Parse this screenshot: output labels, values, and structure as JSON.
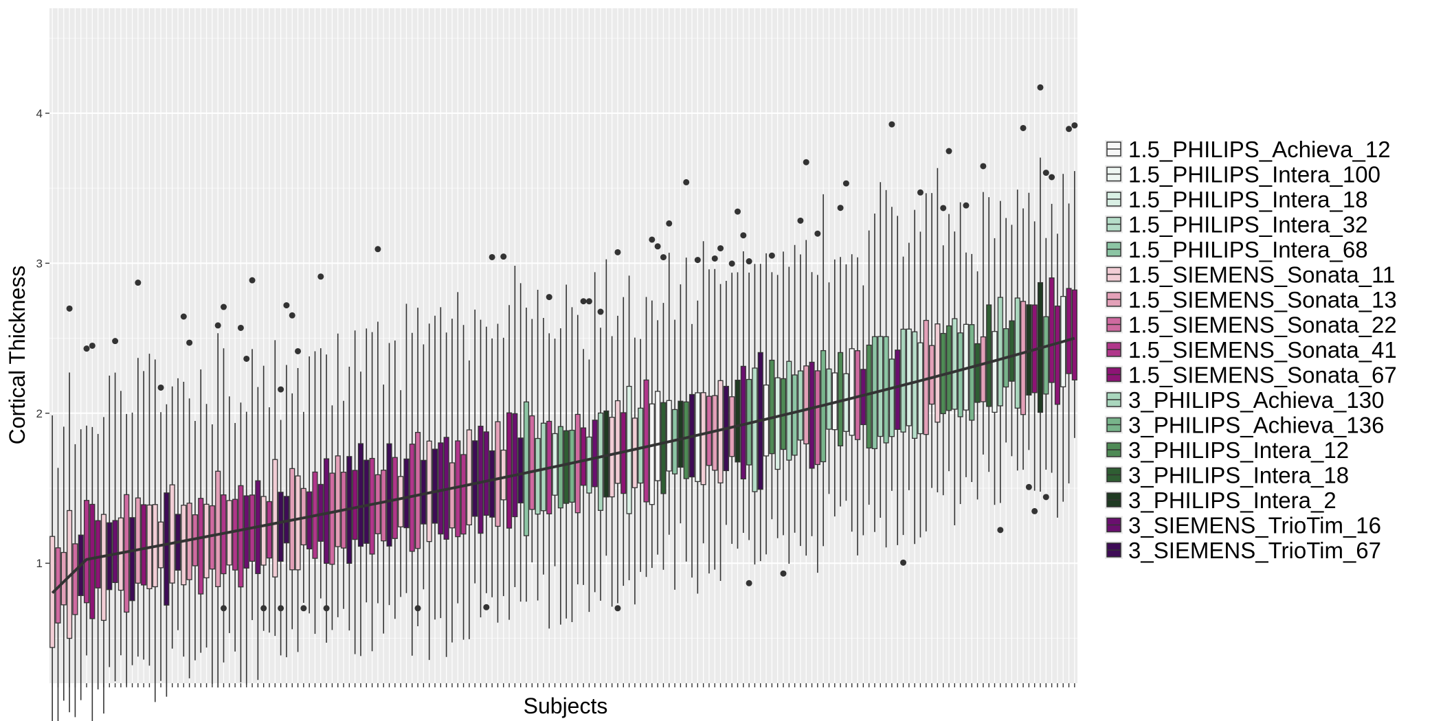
{
  "chart_data": {
    "type": "boxplot",
    "title": "",
    "xlabel": "Subjects",
    "ylabel": "Cortical Thickness",
    "ylim": [
      0.2,
      4.7
    ],
    "yticks": [
      1,
      2,
      3,
      4
    ],
    "ytick_labels": [
      "1",
      "2",
      "3",
      "4"
    ],
    "grid": true,
    "x_tick_labels_shown": false,
    "legend_position": "right",
    "legend_title": "",
    "subject_count": 180,
    "median_range": [
      0.85,
      2.5
    ],
    "series": [
      {
        "name": "1.5_PHILIPS_Achieva_12",
        "color": "#f7f7f7"
      },
      {
        "name": "1.5_PHILIPS_Intera_100",
        "color": "#eef6f2"
      },
      {
        "name": "1.5_PHILIPS_Intera_18",
        "color": "#d9efe4"
      },
      {
        "name": "1.5_PHILIPS_Intera_32",
        "color": "#b6dec9"
      },
      {
        "name": "1.5_PHILIPS_Intera_68",
        "color": "#8cc5a4"
      },
      {
        "name": "1.5_SIEMENS_Sonata_11",
        "color": "#f2cdd5"
      },
      {
        "name": "1.5_SIEMENS_Sonata_13",
        "color": "#e3a0b8"
      },
      {
        "name": "1.5_SIEMENS_Sonata_22",
        "color": "#cf6aa0"
      },
      {
        "name": "1.5_SIEMENS_Sonata_41",
        "color": "#b0368a"
      },
      {
        "name": "1.5_SIEMENS_Sonata_67",
        "color": "#8d1475"
      },
      {
        "name": "3_PHILIPS_Achieva_130",
        "color": "#a9d6bd"
      },
      {
        "name": "3_PHILIPS_Achieva_136",
        "color": "#78b48b"
      },
      {
        "name": "3_PHILIPS_Intera_12",
        "color": "#4e8a55"
      },
      {
        "name": "3_PHILIPS_Intera_18",
        "color": "#2f5e33"
      },
      {
        "name": "3_PHILIPS_Intera_2",
        "color": "#1f3a22"
      },
      {
        "name": "3_SIEMENS_TrioTim_16",
        "color": "#6a0f6f"
      },
      {
        "name": "3_SIEMENS_TrioTim_67",
        "color": "#3e0b56"
      }
    ]
  }
}
